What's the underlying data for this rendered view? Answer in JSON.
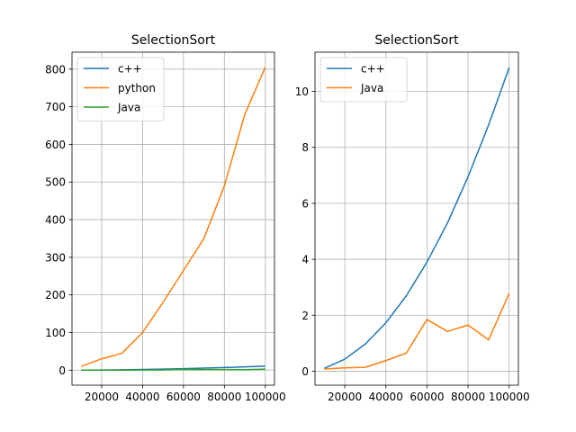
{
  "chart_data": [
    {
      "type": "line",
      "title": "SelectionSort",
      "xlabel": "",
      "ylabel": "",
      "grid": true,
      "legend_position": "top-left",
      "xlim": [
        5500,
        104500
      ],
      "ylim": [
        -40,
        845
      ],
      "xticks": [
        20000,
        40000,
        60000,
        80000,
        100000
      ],
      "xtick_labels": [
        "20000",
        "40000",
        "60000",
        "80000",
        "100000"
      ],
      "yticks": [
        0,
        100,
        200,
        300,
        400,
        500,
        600,
        700,
        800
      ],
      "ytick_labels": [
        "0",
        "100",
        "200",
        "300",
        "400",
        "500",
        "600",
        "700",
        "800"
      ],
      "x": [
        10000,
        20000,
        30000,
        40000,
        50000,
        60000,
        70000,
        80000,
        90000,
        100000
      ],
      "series": [
        {
          "name": "c++",
          "color": "#1f77b4",
          "values": [
            0.1,
            0.43,
            0.97,
            1.73,
            2.7,
            3.9,
            5.3,
            6.95,
            8.8,
            10.85
          ]
        },
        {
          "name": "python",
          "color": "#ff7f0e",
          "values": [
            10,
            30,
            45,
            100,
            180,
            265,
            350,
            490,
            680,
            805
          ]
        },
        {
          "name": "Java",
          "color": "#2ca02c",
          "values": [
            0.08,
            0.12,
            0.14,
            0.38,
            0.65,
            1.85,
            1.42,
            1.65,
            1.12,
            2.78
          ]
        }
      ]
    },
    {
      "type": "line",
      "title": "SelectionSort",
      "xlabel": "",
      "ylabel": "",
      "grid": true,
      "legend_position": "top-left",
      "xlim": [
        5500,
        104500
      ],
      "ylim": [
        -0.5,
        11.4
      ],
      "xticks": [
        20000,
        40000,
        60000,
        80000,
        100000
      ],
      "xtick_labels": [
        "20000",
        "40000",
        "60000",
        "80000",
        "100000"
      ],
      "yticks": [
        0,
        2,
        4,
        6,
        8,
        10
      ],
      "ytick_labels": [
        "0",
        "2",
        "4",
        "6",
        "8",
        "10"
      ],
      "x": [
        10000,
        20000,
        30000,
        40000,
        50000,
        60000,
        70000,
        80000,
        90000,
        100000
      ],
      "series": [
        {
          "name": "c++",
          "color": "#1f77b4",
          "values": [
            0.1,
            0.43,
            0.97,
            1.73,
            2.7,
            3.9,
            5.3,
            6.95,
            8.8,
            10.85
          ]
        },
        {
          "name": "Java",
          "color": "#ff7f0e",
          "values": [
            0.08,
            0.12,
            0.14,
            0.38,
            0.65,
            1.85,
            1.42,
            1.65,
            1.12,
            2.78
          ]
        }
      ]
    }
  ]
}
